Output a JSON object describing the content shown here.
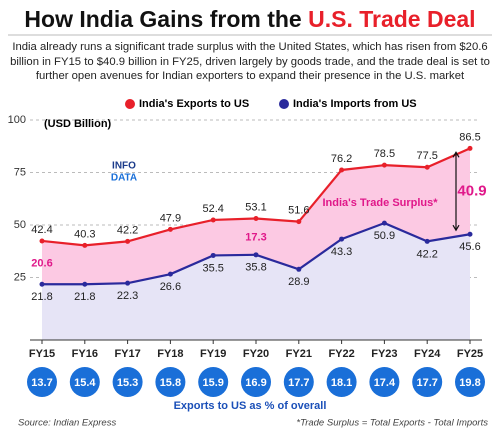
{
  "chart_data": {
    "type": "line",
    "title": [
      "How India Gains from the",
      "U.S. Trade Deal"
    ],
    "subtitle": "India already runs a significant trade surplus with the United States, which has risen from $20.6 billion in FY15 to $40.9 billion in FY25, driven largely by goods trade, and the trade deal is set to further open avenues for Indian exporters to expand their presence in the U.S. market",
    "y_label": "(USD Billion)",
    "logo": [
      "INFO",
      "DATA"
    ],
    "categories": [
      "FY15",
      "FY16",
      "FY17",
      "FY18",
      "FY19",
      "FY20",
      "FY21",
      "FY22",
      "FY23",
      "FY24",
      "FY25"
    ],
    "series": [
      {
        "name": "India's Exports to US",
        "color": "#e8202a",
        "values": [
          42.4,
          40.3,
          42.2,
          47.9,
          52.4,
          53.1,
          51.6,
          76.2,
          78.5,
          77.5,
          86.5
        ]
      },
      {
        "name": "India's Imports from US",
        "color": "#2a2a9c",
        "values": [
          21.8,
          21.8,
          22.3,
          26.6,
          35.5,
          35.8,
          28.9,
          43.3,
          50.9,
          42.2,
          45.6
        ]
      }
    ],
    "surplus": {
      "label": "India's Trade Surplus*",
      "values": [
        20.6,
        null,
        null,
        null,
        null,
        17.3,
        null,
        null,
        null,
        null,
        40.9
      ]
    },
    "share": {
      "label": "Exports to US as % of overall",
      "color": "#1a6fd8",
      "values": [
        13.7,
        15.4,
        15.3,
        15.8,
        15.9,
        16.9,
        17.7,
        18.1,
        17.4,
        17.7,
        19.8
      ]
    },
    "ylim": [
      0,
      100
    ],
    "yticks": [
      25,
      50,
      75,
      100
    ],
    "grid": true,
    "source": "Source: Indian Express",
    "footnote": "*Trade Surplus = Total Exports - Total Imports"
  }
}
